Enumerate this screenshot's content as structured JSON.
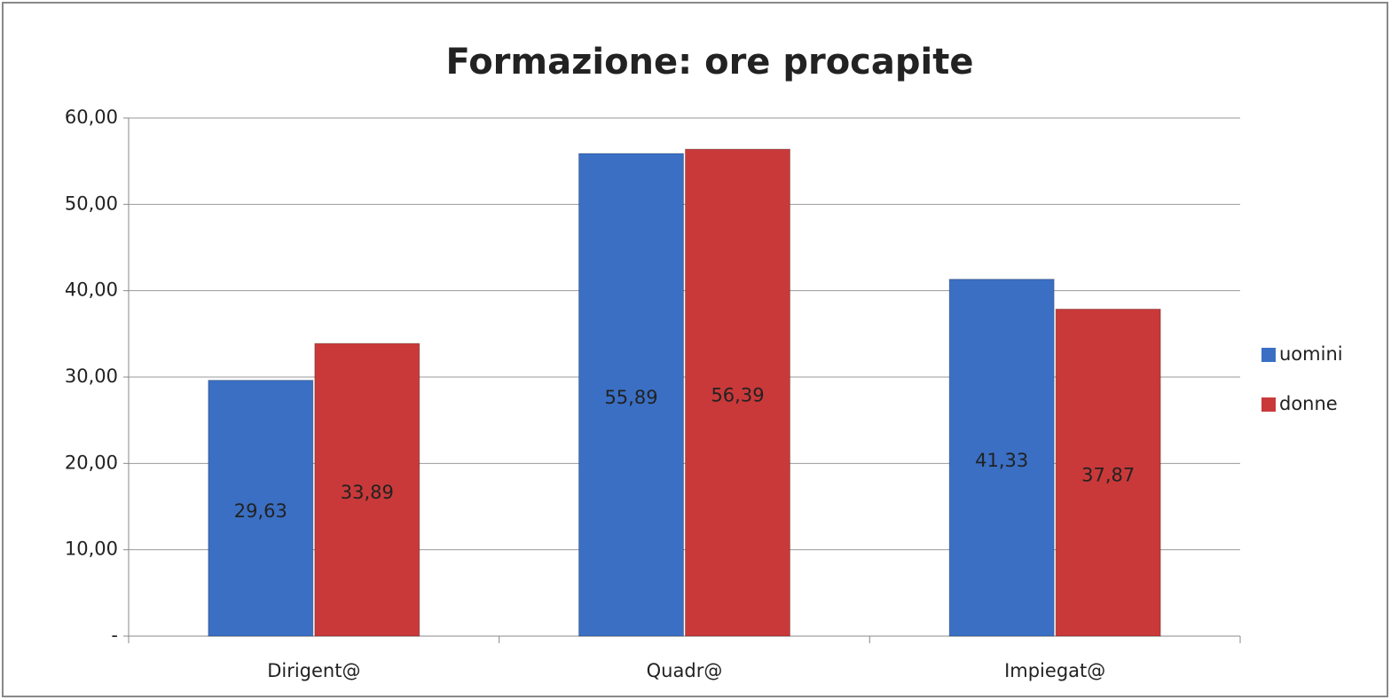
{
  "chart_data": {
    "type": "bar",
    "title": "Formazione: ore procapite",
    "categories": [
      "Dirigent@",
      "Quadr@",
      "Impiegat@"
    ],
    "series": [
      {
        "name": "uomini",
        "color": "#3a6fc4",
        "values": [
          29.63,
          55.89,
          41.33
        ],
        "value_labels": [
          "29,63",
          "55,89",
          "41,33"
        ]
      },
      {
        "name": "donne",
        "color": "#c9393a",
        "values": [
          33.89,
          56.39,
          37.87
        ],
        "value_labels": [
          "33,89",
          "56,39",
          "37,87"
        ]
      }
    ],
    "ylim": [
      0,
      60
    ],
    "yticks": [
      {
        "value": 0,
        "label": "-"
      },
      {
        "value": 10,
        "label": "10,00"
      },
      {
        "value": 20,
        "label": "20,00"
      },
      {
        "value": 30,
        "label": "30,00"
      },
      {
        "value": 40,
        "label": "40,00"
      },
      {
        "value": 50,
        "label": "50,00"
      },
      {
        "value": 60,
        "label": "60,00"
      }
    ],
    "grid": true,
    "legend": "right"
  }
}
